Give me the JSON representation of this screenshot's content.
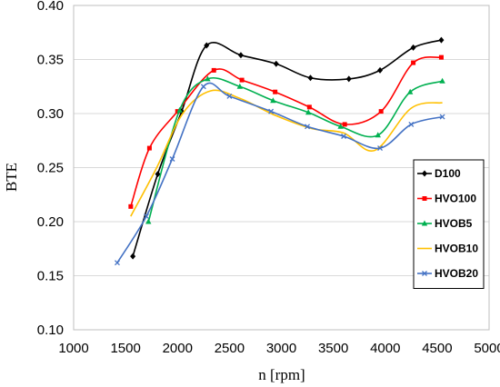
{
  "chart_data": {
    "type": "line",
    "title": "",
    "xlabel": "n [rpm]",
    "ylabel": "BTE",
    "xlim": [
      1000,
      5000
    ],
    "ylim": [
      0.1,
      0.4
    ],
    "xticks": [
      1000,
      1500,
      2000,
      2500,
      3000,
      3500,
      4000,
      4500,
      5000
    ],
    "yticks": [
      0.1,
      0.15,
      0.2,
      0.25,
      0.3,
      0.35,
      0.4
    ],
    "ytick_labels": [
      "0.10",
      "0.15",
      "0.20",
      "0.25",
      "0.30",
      "0.35",
      "0.40"
    ],
    "grid": "horizontal",
    "legend_position": "right",
    "series": [
      {
        "name": "D100",
        "color": "#000000",
        "marker": "diamond",
        "x": [
          1570,
          1810,
          2040,
          2280,
          2610,
          2950,
          3280,
          3650,
          3950,
          4270,
          4540
        ],
        "y": [
          0.168,
          0.244,
          0.302,
          0.363,
          0.354,
          0.346,
          0.333,
          0.332,
          0.34,
          0.361,
          0.368
        ]
      },
      {
        "name": "HVO100",
        "color": "#ff0000",
        "marker": "square",
        "x": [
          1550,
          1730,
          2000,
          2350,
          2620,
          2940,
          3270,
          3610,
          3960,
          4270,
          4540
        ],
        "y": [
          0.214,
          0.268,
          0.302,
          0.34,
          0.331,
          0.32,
          0.306,
          0.29,
          0.302,
          0.347,
          0.352
        ]
      },
      {
        "name": "HVOB5",
        "color": "#00b050",
        "marker": "triangle",
        "x": [
          1720,
          2020,
          2290,
          2600,
          2920,
          3260,
          3570,
          3930,
          4240,
          4550
        ],
        "y": [
          0.2,
          0.303,
          0.332,
          0.325,
          0.312,
          0.301,
          0.288,
          0.28,
          0.32,
          0.33
        ]
      },
      {
        "name": "HVOB10",
        "color": "#ffc000",
        "marker": "none",
        "x": [
          1550,
          1800,
          2050,
          2320,
          2600,
          2950,
          3300,
          3600,
          3900,
          4250,
          4550
        ],
        "y": [
          0.205,
          0.25,
          0.3,
          0.321,
          0.314,
          0.298,
          0.286,
          0.282,
          0.266,
          0.305,
          0.31
        ]
      },
      {
        "name": "HVOB20",
        "color": "#4472c4",
        "marker": "cross",
        "x": [
          1420,
          1700,
          1950,
          2250,
          2500,
          2900,
          3250,
          3600,
          3950,
          4250,
          4550
        ],
        "y": [
          0.162,
          0.205,
          0.258,
          0.325,
          0.316,
          0.302,
          0.288,
          0.279,
          0.268,
          0.29,
          0.297
        ]
      }
    ]
  }
}
